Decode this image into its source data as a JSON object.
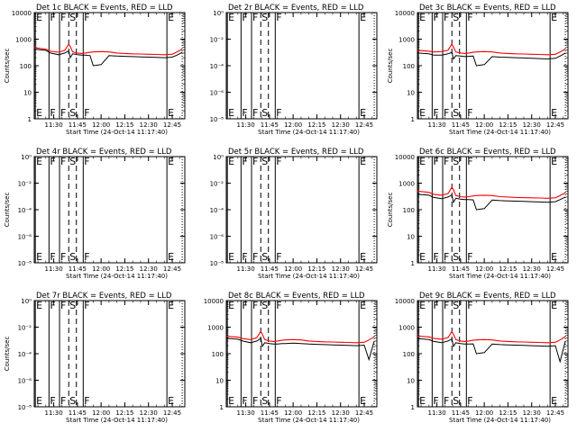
{
  "chart_data": {
    "type": "line",
    "layout": "3x3 grid of panels",
    "xlabel": "Start Time (24-Oct-14 11:17:40)",
    "x_ticks": [
      "11:30",
      "11:45",
      "12:00",
      "12:15",
      "12:30",
      "12:45"
    ],
    "x_range": [
      "11:17:40",
      "12:53:00"
    ],
    "colors": {
      "events": "#000000",
      "lld": "#ff0000",
      "axes": "#000000",
      "background": "#ffffff"
    },
    "series_names": [
      "Events",
      "LLD"
    ],
    "markers": [
      {
        "label": "E",
        "time": "11:18:20",
        "line": "solid"
      },
      {
        "label": "F",
        "time": "11:27:00",
        "line": "solid"
      },
      {
        "label": "F",
        "time": "11:33:40",
        "line": "solid"
      },
      {
        "label": "S",
        "time": "11:39:30",
        "line": "dashed"
      },
      {
        "label": "",
        "time": "11:44:20",
        "line": "dashed"
      },
      {
        "label": "F",
        "time": "11:48:40",
        "line": "solid"
      },
      {
        "label": "E",
        "time": "12:41:40",
        "line": "solid"
      }
    ],
    "end_time": "12:51:20",
    "log_ticks_active": [
      "1",
      "10",
      "100",
      "1000",
      "10000"
    ],
    "log_ticks_empty": [
      "10⁻⁸",
      "10⁻⁶",
      "10⁻⁴",
      "10⁻²",
      "10⁰"
    ],
    "active_x": [
      "11:17:40",
      "11:25:00",
      "11:28:00",
      "11:33:00",
      "11:37:00",
      "11:39:30",
      "11:40:30",
      "11:42:00",
      "11:45:00",
      "11:47:30",
      "11:50:00",
      "11:53:00",
      "11:55:00",
      "12:00:00",
      "12:05:00",
      "12:10:00",
      "12:15:00",
      "12:20:00",
      "12:25:00",
      "12:30:00",
      "12:35:00",
      "12:40:00",
      "12:45:00",
      "12:48:00",
      "12:51:20"
    ],
    "panels": [
      {
        "title": "Det 1c BLACK = Events, RED = LLD",
        "ylabel": "Counts/sec",
        "empty": false,
        "ylim": [
          1,
          10000
        ],
        "lld": [
          480,
          420,
          350,
          320,
          380,
          650,
          520,
          330,
          300,
          290,
          300,
          320,
          330,
          340,
          330,
          300,
          290,
          280,
          275,
          270,
          265,
          260,
          270,
          330,
          420
        ],
        "events": [
          420,
          380,
          300,
          260,
          300,
          360,
          200,
          280,
          260,
          250,
          250,
          240,
          100,
          110,
          240,
          230,
          225,
          220,
          215,
          210,
          205,
          200,
          210,
          250,
          320
        ]
      },
      {
        "title": "Det 2r BLACK = Events, RED = LLD",
        "ylabel": "",
        "empty": true,
        "ylim": [
          1,
          1e-08
        ]
      },
      {
        "title": "Det 3c BLACK = Events, RED = LLD",
        "ylabel": "Counts/sec",
        "empty": false,
        "ylim": [
          1,
          10000
        ],
        "lld": [
          380,
          350,
          330,
          340,
          380,
          650,
          500,
          330,
          300,
          290,
          300,
          320,
          330,
          340,
          330,
          300,
          290,
          280,
          275,
          270,
          265,
          260,
          270,
          330,
          420
        ],
        "events": [
          300,
          280,
          250,
          250,
          280,
          320,
          180,
          240,
          230,
          220,
          225,
          230,
          100,
          110,
          220,
          210,
          205,
          200,
          195,
          190,
          185,
          180,
          190,
          230,
          300
        ]
      },
      {
        "title": "Det 4r BLACK = Events, RED = LLD",
        "ylabel": "Counts/sec",
        "empty": true,
        "ylim": [
          1,
          1e-08
        ]
      },
      {
        "title": "Det 5r BLACK = Events, RED = LLD",
        "ylabel": "",
        "empty": true,
        "ylim": [
          1,
          1e-08
        ]
      },
      {
        "title": "Det 6c BLACK = Events, RED = LLD",
        "ylabel": "Counts/sec",
        "empty": false,
        "ylim": [
          1,
          10000
        ],
        "lld": [
          500,
          450,
          380,
          350,
          400,
          700,
          560,
          340,
          310,
          300,
          310,
          330,
          340,
          350,
          340,
          310,
          300,
          290,
          285,
          280,
          275,
          270,
          280,
          340,
          430
        ],
        "events": [
          380,
          350,
          290,
          260,
          300,
          360,
          190,
          270,
          250,
          240,
          240,
          235,
          100,
          110,
          230,
          220,
          215,
          210,
          205,
          200,
          195,
          190,
          200,
          240,
          300
        ]
      },
      {
        "title": "Det 7r BLACK = Events, RED = LLD",
        "ylabel": "Counts/sec",
        "empty": true,
        "ylim": [
          1,
          1e-08
        ]
      },
      {
        "title": "Det 8c BLACK = Events, RED = LLD",
        "ylabel": "",
        "empty": false,
        "ylim": [
          1,
          10000
        ],
        "lld": [
          450,
          420,
          370,
          340,
          400,
          700,
          550,
          340,
          300,
          290,
          300,
          320,
          330,
          340,
          330,
          300,
          290,
          280,
          275,
          270,
          265,
          260,
          270,
          330,
          430
        ],
        "events": [
          380,
          350,
          300,
          260,
          300,
          380,
          190,
          260,
          240,
          230,
          230,
          240,
          240,
          250,
          240,
          230,
          225,
          220,
          215,
          210,
          205,
          200,
          210,
          60,
          300
        ]
      },
      {
        "title": "Det 9c BLACK = Events, RED = LLD",
        "ylabel": "",
        "empty": false,
        "ylim": [
          1,
          10000
        ],
        "lld": [
          460,
          430,
          380,
          350,
          400,
          680,
          540,
          340,
          300,
          290,
          300,
          320,
          330,
          340,
          330,
          300,
          290,
          280,
          275,
          270,
          265,
          260,
          270,
          330,
          440
        ],
        "events": [
          370,
          340,
          290,
          260,
          300,
          360,
          190,
          260,
          240,
          230,
          230,
          235,
          100,
          110,
          230,
          220,
          215,
          210,
          205,
          200,
          195,
          190,
          200,
          50,
          300
        ]
      }
    ]
  }
}
